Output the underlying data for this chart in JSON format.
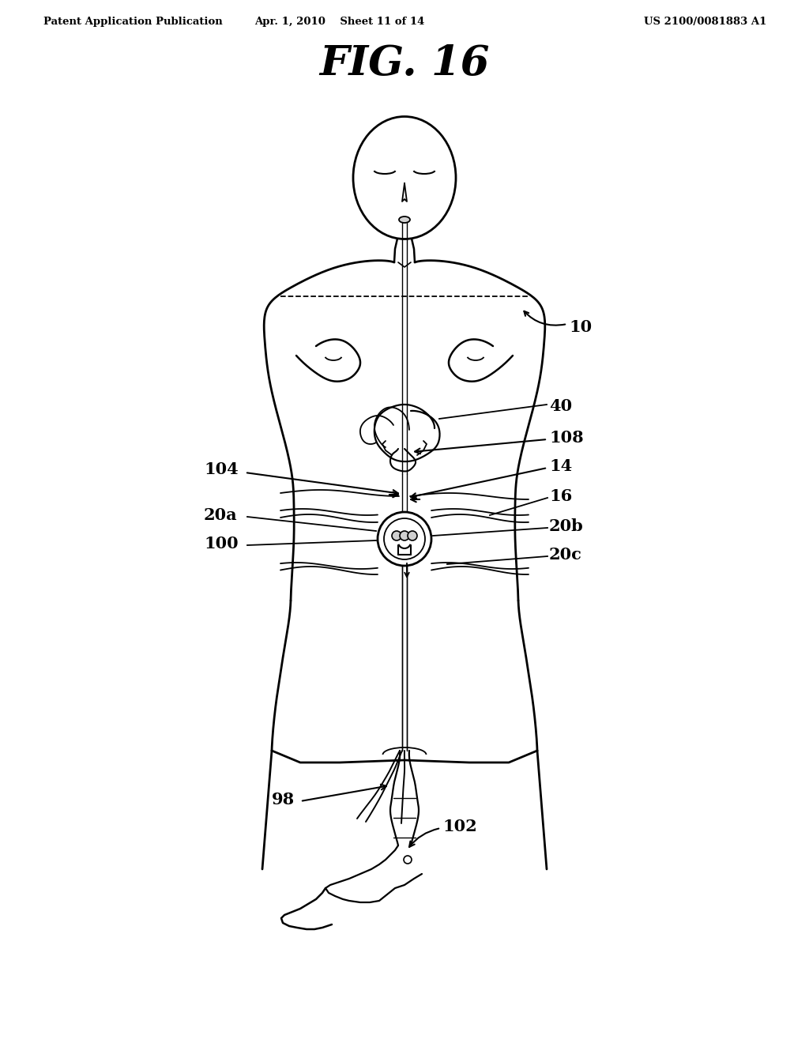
{
  "title": "FIG. 16",
  "header_left": "Patent Application Publication",
  "header_center": "Apr. 1, 2010   Sheet 11 of 14",
  "header_right": "US 2100/0081883 A1",
  "bg_color": "#ffffff",
  "line_color": "#000000",
  "fig_width": 10.24,
  "fig_height": 13.2,
  "dpi": 100
}
